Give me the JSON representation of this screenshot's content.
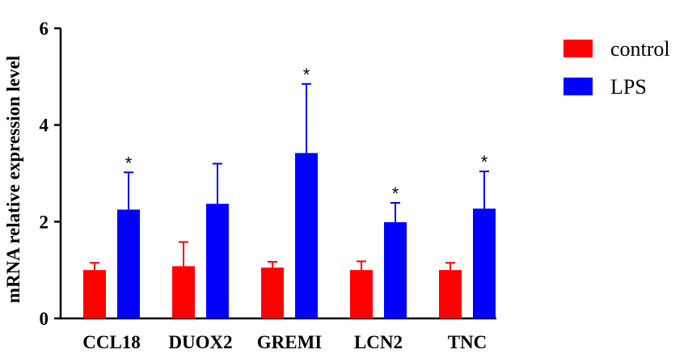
{
  "chart_data": {
    "type": "bar",
    "ylabel": "mRNA relative expression level",
    "xlabel": "",
    "ylim": [
      0,
      6
    ],
    "yticks": [
      0,
      2,
      4,
      6
    ],
    "categories": [
      "CCL18",
      "DUOX2",
      "GREMI",
      "LCN2",
      "TNC"
    ],
    "series": [
      {
        "name": "control",
        "color": "#ff0000",
        "values": [
          1.0,
          1.08,
          1.05,
          1.0,
          1.0
        ],
        "error": [
          0.15,
          0.5,
          0.12,
          0.18,
          0.15
        ]
      },
      {
        "name": "LPS",
        "color": "#0000ff",
        "values": [
          2.25,
          2.37,
          3.42,
          1.99,
          2.27
        ],
        "error": [
          0.77,
          0.83,
          1.43,
          0.4,
          0.77
        ]
      }
    ],
    "annotations": [
      "*",
      "",
      "*",
      "*",
      "*"
    ],
    "legend_position": "top-right",
    "grid": false
  }
}
